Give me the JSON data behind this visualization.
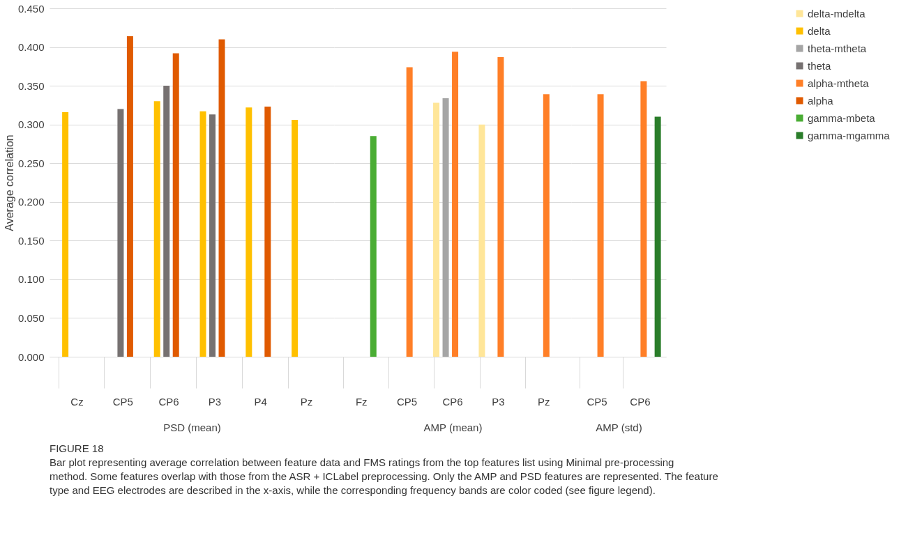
{
  "chart_data": [
    {
      "type": "bar",
      "xlabel": "PSD (mean)",
      "ylabel": "Average correlation",
      "categories": [
        "Cz",
        "CP5",
        "CP6",
        "P3",
        "P4",
        "Pz"
      ],
      "ylim": [
        0,
        0.45
      ],
      "yticks": [
        {
          "value": 0,
          "label": "0.000"
        },
        {
          "value": 0.05,
          "label": "0.050"
        },
        {
          "value": 0.1,
          "label": "0.100"
        },
        {
          "value": 0.15,
          "label": "0.150"
        },
        {
          "value": 0.2,
          "label": "0.200"
        },
        {
          "value": 0.25,
          "label": "0.250"
        },
        {
          "value": 0.3,
          "label": "0.300"
        },
        {
          "value": 0.35,
          "label": "0.350"
        },
        {
          "value": 0.4,
          "label": "0.400"
        },
        {
          "value": 0.45,
          "label": "0.450"
        }
      ],
      "grid": "y",
      "legend": "right",
      "series": [
        {
          "name": "delta-mdelta",
          "color": "#ffe699",
          "values": [
            null,
            null,
            null,
            null,
            null,
            null
          ]
        },
        {
          "name": "delta",
          "color": "#ffc000",
          "values": [
            0.316,
            null,
            0.33,
            0.317,
            0.322,
            0.306
          ]
        },
        {
          "name": "theta-mtheta",
          "color": "#a5a5a5",
          "values": [
            null,
            null,
            null,
            null,
            null,
            null
          ]
        },
        {
          "name": "theta",
          "color": "#767171",
          "values": [
            null,
            0.32,
            0.35,
            0.313,
            null,
            null
          ]
        },
        {
          "name": "alpha-mtheta",
          "color": "#ff7f27",
          "values": [
            null,
            null,
            null,
            null,
            null,
            null
          ]
        },
        {
          "name": "alpha",
          "color": "#e05a00",
          "values": [
            null,
            0.414,
            0.392,
            0.41,
            0.323,
            null
          ]
        },
        {
          "name": "gamma-mbeta",
          "color": "#4aad34",
          "values": [
            null,
            null,
            null,
            null,
            null,
            null
          ]
        },
        {
          "name": "gamma-mgamma",
          "color": "#2a7d2a",
          "values": [
            null,
            null,
            null,
            null,
            null,
            null
          ]
        }
      ],
      "annotations": [
        "FIGURE 18",
        "Bar plot representing average correlation between feature data and FMS ratings from the top features list using Minimal pre-processing method. Some features overlap with those from the ASR + ICLabel preprocessing. Only the AMP and PSD features are represented. The feature type and EEG electrodes are described in the x-axis, while the corresponding frequency bands are color coded (see figure legend)."
      ]
    },
    {
      "type": "bar",
      "xlabel": "AMP (mean)",
      "categories": [
        "Fz",
        "CP5",
        "CP6",
        "P3",
        "Pz"
      ],
      "ylim": [
        0,
        0.45
      ],
      "yticks": [
        0,
        0.05,
        0.1,
        0.15,
        0.2,
        0.25,
        0.3,
        0.35,
        0.4,
        0.45
      ],
      "tick_labels": "x",
      "grid": "y",
      "series": [
        {
          "color": "#ffe699",
          "values": [
            null,
            null,
            0.328,
            0.3,
            null
          ]
        },
        {
          "color": "#ffc000",
          "values": [
            null,
            null,
            null,
            null,
            null
          ]
        },
        {
          "color": "#a5a5a5",
          "values": [
            null,
            null,
            0.334,
            null,
            null
          ]
        },
        {
          "color": "#767171",
          "values": [
            null,
            null,
            null,
            null,
            null
          ]
        },
        {
          "color": "#ff7f27",
          "values": [
            null,
            0.374,
            0.394,
            0.387,
            0.339
          ]
        },
        {
          "color": "#e05a00",
          "values": [
            null,
            null,
            null,
            null,
            null
          ]
        },
        {
          "color": "#4aad34",
          "values": [
            0.285,
            null,
            null,
            null,
            null
          ]
        },
        {
          "color": "#2a7d2a",
          "values": [
            null,
            null,
            null,
            null,
            null
          ]
        }
      ]
    },
    {
      "type": "bar",
      "xlabel": "AMP (std)",
      "categories": [
        "CP5",
        "CP6"
      ],
      "ylim": [
        0,
        0.45
      ],
      "yticks": [
        0,
        0.05,
        0.1,
        0.15,
        0.2,
        0.25,
        0.3,
        0.35,
        0.4,
        0.45
      ],
      "tick_labels": "x",
      "grid": "y",
      "series": [
        {
          "color": "#ffe699",
          "values": [
            null,
            null
          ]
        },
        {
          "color": "#ffc000",
          "values": [
            null,
            null
          ]
        },
        {
          "color": "#a5a5a5",
          "values": [
            null,
            null
          ]
        },
        {
          "color": "#767171",
          "values": [
            null,
            null
          ]
        },
        {
          "color": "#ff7f27",
          "values": [
            0.339,
            0.356
          ]
        },
        {
          "color": "#e05a00",
          "values": [
            null,
            null
          ]
        },
        {
          "color": "#4aad34",
          "values": [
            null,
            null
          ]
        },
        {
          "color": "#2a7d2a",
          "values": [
            null,
            0.31
          ]
        }
      ]
    }
  ]
}
